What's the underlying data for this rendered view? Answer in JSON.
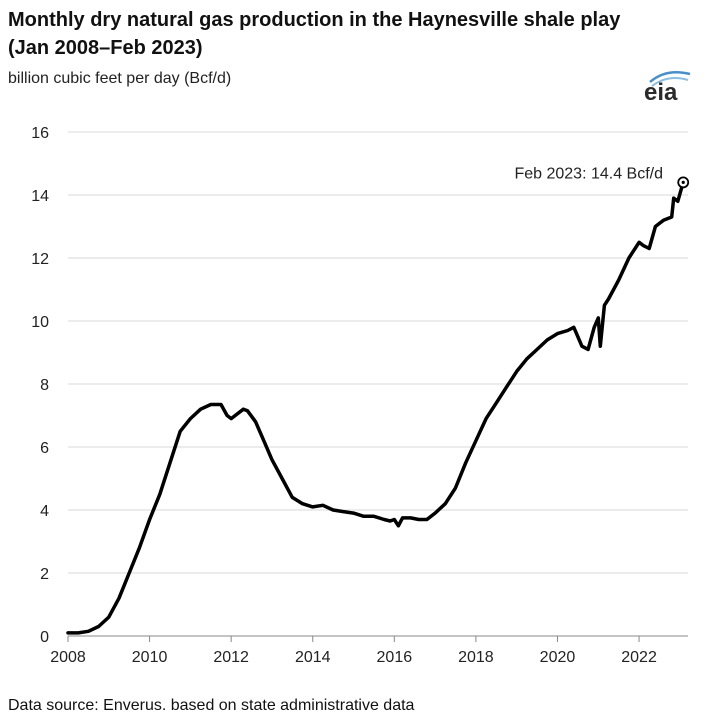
{
  "chart_data": {
    "type": "line",
    "title": "Monthly dry natural gas production in the Haynesville shale play (Jan 2008–Feb 2023)",
    "ylabel": "billion cubic feet per day (Bcf/d)",
    "xlabel": "",
    "xlim": [
      2008,
      2023.2
    ],
    "ylim": [
      0,
      16
    ],
    "x_ticks": [
      "2008",
      "2010",
      "2012",
      "2014",
      "2016",
      "2018",
      "2020",
      "2022"
    ],
    "y_ticks": [
      "0",
      "2",
      "4",
      "6",
      "8",
      "10",
      "12",
      "14",
      "16"
    ],
    "grid": "horizontal",
    "line_color": "#000000",
    "annotation": "Feb 2023: 14.4 Bcf/d",
    "series": [
      {
        "x": [
          2008.0,
          2008.25,
          2008.5,
          2008.75,
          2009.0,
          2009.25,
          2009.5,
          2009.75,
          2010.0,
          2010.25,
          2010.5,
          2010.75,
          2011.0,
          2011.25,
          2011.5,
          2011.75,
          2011.9,
          2012.0,
          2012.1,
          2012.3,
          2012.4,
          2012.6,
          2012.8,
          2013.0,
          2013.25,
          2013.5,
          2013.75,
          2014.0,
          2014.25,
          2014.5,
          2014.75,
          2015.0,
          2015.25,
          2015.5,
          2015.75,
          2015.9,
          2016.0,
          2016.1,
          2016.2,
          2016.4,
          2016.6,
          2016.8,
          2017.0,
          2017.25,
          2017.5,
          2017.75,
          2018.0,
          2018.25,
          2018.5,
          2018.75,
          2019.0,
          2019.25,
          2019.5,
          2019.75,
          2020.0,
          2020.25,
          2020.4,
          2020.5,
          2020.6,
          2020.75,
          2020.9,
          2021.0,
          2021.05,
          2021.15,
          2021.25,
          2021.5,
          2021.75,
          2022.0,
          2022.1,
          2022.25,
          2022.4,
          2022.6,
          2022.8,
          2022.85,
          2022.95,
          2023.083
        ],
        "values": [
          0.1,
          0.1,
          0.15,
          0.3,
          0.6,
          1.2,
          2.0,
          2.8,
          3.7,
          4.5,
          5.5,
          6.5,
          6.9,
          7.2,
          7.35,
          7.35,
          7.0,
          6.9,
          7.0,
          7.2,
          7.15,
          6.8,
          6.2,
          5.6,
          5.0,
          4.4,
          4.2,
          4.1,
          4.15,
          4.0,
          3.95,
          3.9,
          3.8,
          3.8,
          3.7,
          3.65,
          3.7,
          3.5,
          3.75,
          3.75,
          3.7,
          3.7,
          3.9,
          4.2,
          4.7,
          5.5,
          6.2,
          6.9,
          7.4,
          7.9,
          8.4,
          8.8,
          9.1,
          9.4,
          9.6,
          9.7,
          9.8,
          9.5,
          9.2,
          9.1,
          9.8,
          10.1,
          9.2,
          10.5,
          10.7,
          11.3,
          12.0,
          12.5,
          12.4,
          12.3,
          13.0,
          13.2,
          13.3,
          13.9,
          13.8,
          14.4
        ]
      }
    ]
  },
  "header": {
    "title": "Monthly dry natural gas production in the Haynesville shale play (Jan 2008–Feb 2023)",
    "subtitle": "billion cubic feet per day (Bcf/d)",
    "logo_text": "eia"
  },
  "footer": {
    "source": "Data source: Enverus. based on state administrative data"
  }
}
